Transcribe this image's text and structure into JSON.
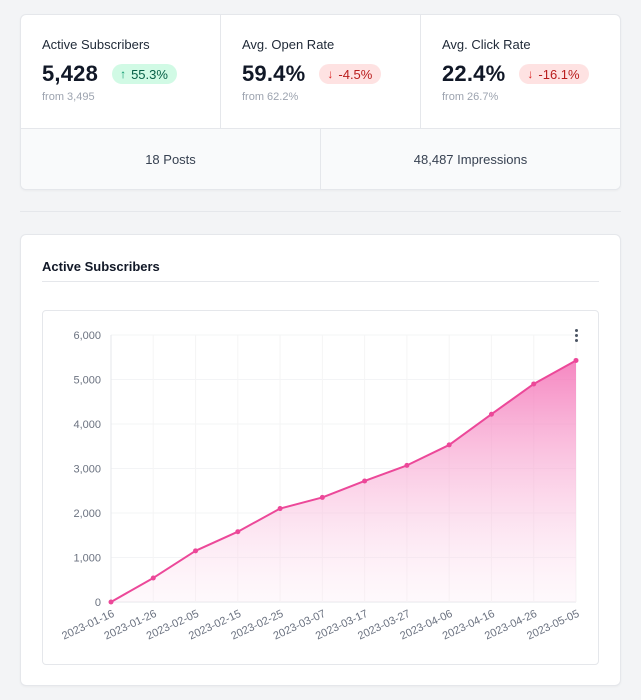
{
  "stats": [
    {
      "label": "Active Subscribers",
      "value": "5,428",
      "change": "55.3%",
      "direction": "up",
      "arrow": "↑",
      "from": "from 3,495"
    },
    {
      "label": "Avg. Open Rate",
      "value": "59.4%",
      "change": "-4.5%",
      "direction": "down",
      "arrow": "↓",
      "from": "from 62.2%"
    },
    {
      "label": "Avg. Click Rate",
      "value": "22.4%",
      "change": "-16.1%",
      "direction": "down",
      "arrow": "↓",
      "from": "from 26.7%"
    }
  ],
  "summary": {
    "posts": "18 Posts",
    "impressions": "48,487 Impressions"
  },
  "chart_section": {
    "title": "Active Subscribers",
    "menu_icon": "more-vertical-icon"
  },
  "colors": {
    "line": "#ec4899",
    "fill_top": "#f472b6",
    "up_badge_bg": "#d1fae5",
    "down_badge_bg": "#fee2e2"
  },
  "chart_data": {
    "type": "area",
    "title": "Active Subscribers",
    "xlabel": "",
    "ylabel": "",
    "x": [
      "2023-01-16",
      "2023-01-26",
      "2023-02-05",
      "2023-02-15",
      "2023-02-25",
      "2023-03-07",
      "2023-03-17",
      "2023-03-27",
      "2023-04-06",
      "2023-04-16",
      "2023-04-26",
      "2023-05-05"
    ],
    "series": [
      {
        "name": "Active Subscribers",
        "values": [
          0,
          540,
          1150,
          1580,
          2100,
          2350,
          2720,
          3070,
          3530,
          4220,
          4900,
          5428
        ]
      }
    ],
    "y_ticks": [
      0,
      1000,
      2000,
      3000,
      4000,
      5000,
      6000
    ],
    "y_tick_labels": [
      "0",
      "1,000",
      "2,000",
      "3,000",
      "4,000",
      "5,000",
      "6,000"
    ],
    "ylim": [
      0,
      6000
    ],
    "grid": true,
    "legend": "none"
  }
}
